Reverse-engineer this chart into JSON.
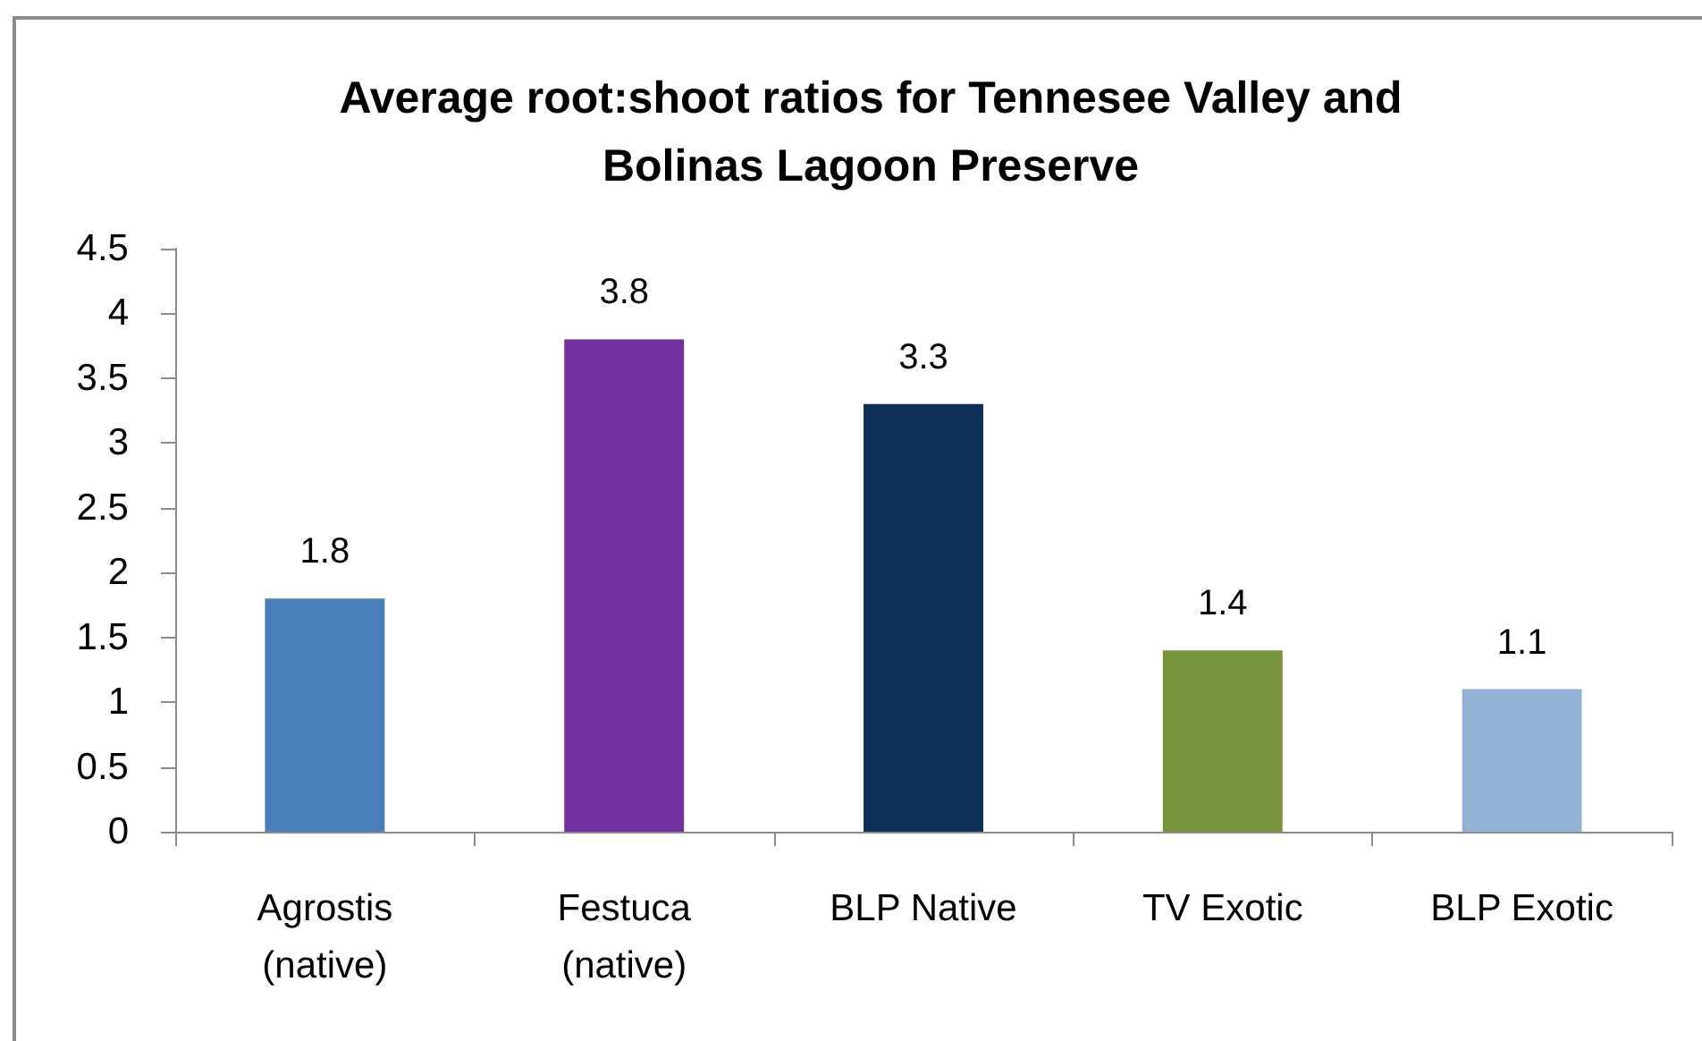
{
  "chart_data": {
    "type": "bar",
    "title": "Average root:shoot ratios for Tennesee Valley and\nBolinas Lagoon Preserve",
    "categories": [
      "Agrostis\n(native)",
      "Festuca\n(native)",
      "BLP Native",
      "TV Exotic",
      "BLP Exotic"
    ],
    "values": [
      1.8,
      3.8,
      3.3,
      1.4,
      1.1
    ],
    "colors": [
      "#4a7ebb",
      "#7030a0",
      "#0e3058",
      "#77933c",
      "#95b3d7"
    ],
    "ylim": [
      0,
      4.5
    ],
    "yticks": [
      0,
      0.5,
      1,
      1.5,
      2,
      2.5,
      3,
      3.5,
      4,
      4.5
    ],
    "grid": false,
    "data_labels": true
  }
}
